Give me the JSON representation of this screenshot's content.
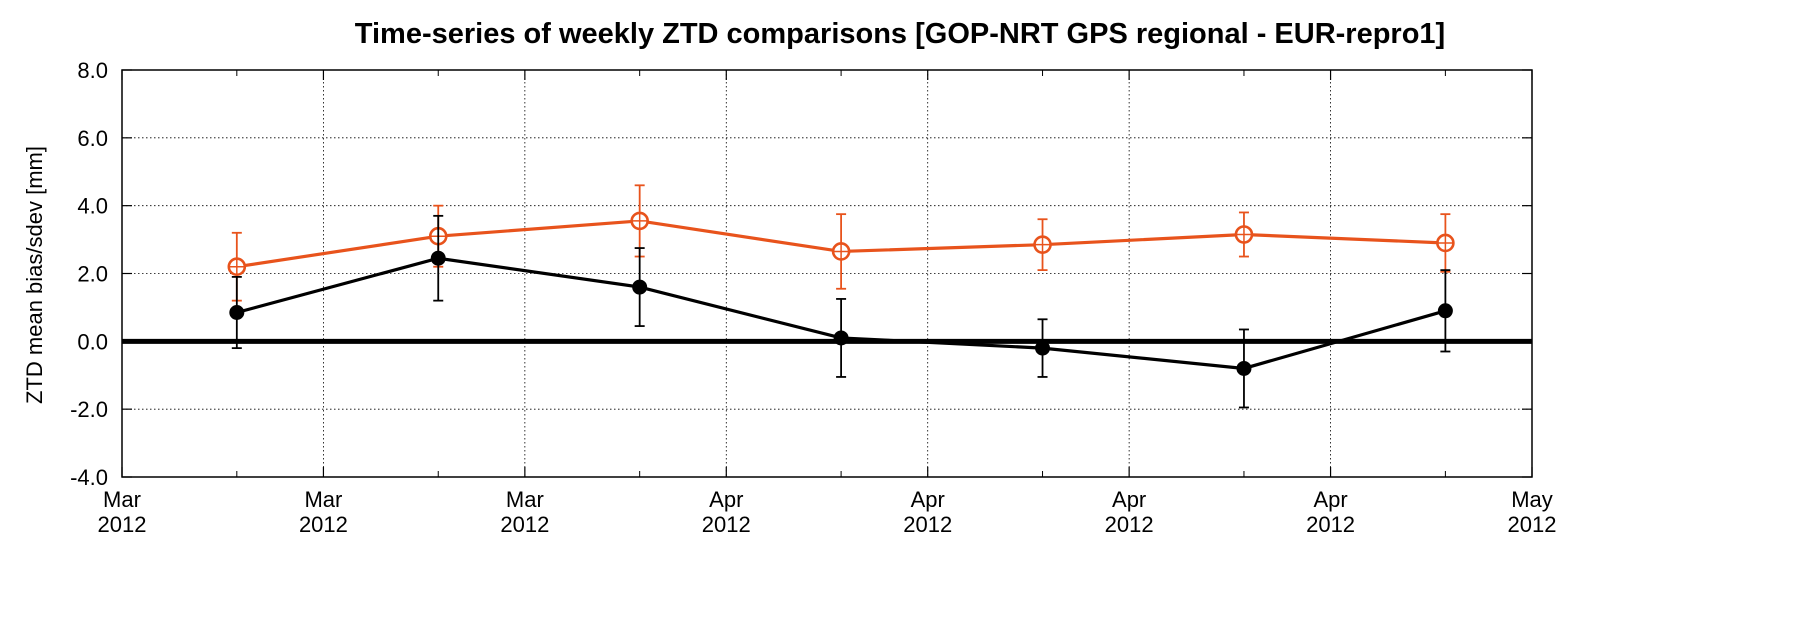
{
  "chart_data": {
    "type": "line",
    "title": "Time-series of weekly ZTD comparisons [GOP-NRT GPS regional - EUR-repro1]",
    "xlabel": "",
    "ylabel": "ZTD mean bias/sdev [mm]",
    "ylim": [
      -4.0,
      8.0
    ],
    "y_ticks": [
      "8.0",
      "6.0",
      "4.0",
      "2.0",
      "0.0",
      "-2.0",
      "-4.0"
    ],
    "x_ticks": [
      {
        "month": "Mar",
        "year": "2012"
      },
      {
        "month": "Mar",
        "year": "2012"
      },
      {
        "month": "Mar",
        "year": "2012"
      },
      {
        "month": "Apr",
        "year": "2012"
      },
      {
        "month": "Apr",
        "year": "2012"
      },
      {
        "month": "Apr",
        "year": "2012"
      },
      {
        "month": "Apr",
        "year": "2012"
      },
      {
        "month": "May",
        "year": "2012"
      }
    ],
    "grid": true,
    "zero_line": true,
    "series": [
      {
        "color": "#e8531c",
        "marker": "open-circle",
        "values": [
          2.2,
          3.1,
          3.55,
          2.65,
          2.85,
          3.15,
          2.9
        ],
        "errors": [
          1.0,
          0.9,
          1.05,
          1.1,
          0.75,
          0.65,
          0.85
        ]
      },
      {
        "color": "#000000",
        "marker": "filled-circle",
        "values": [
          0.85,
          2.45,
          1.6,
          0.1,
          -0.2,
          -0.8,
          0.9
        ],
        "errors": [
          1.05,
          1.25,
          1.15,
          1.15,
          0.85,
          1.15,
          1.2
        ]
      }
    ]
  }
}
